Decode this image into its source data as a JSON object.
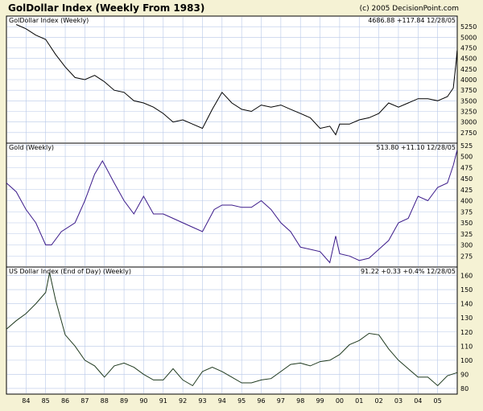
{
  "header": {
    "title": "GolDollar Index (Weekly From 1983)",
    "copyright": "(c) 2005 DecisionPoint.com"
  },
  "colors": {
    "background": "#f5f2d4",
    "plot_area": "#ffffff",
    "grid": "#b8c8e8",
    "goldollar_line": "#000000",
    "gold_line": "#3b1a8a",
    "usd_line": "#1f3a1f"
  },
  "chart_data": [
    {
      "type": "line",
      "panel_label": "GolDollar Index (Weekly)",
      "latest_readout": "4686.88  +117.84  12/28/05",
      "ylim": [
        2500,
        5500
      ],
      "y_ticks": [
        2750,
        3000,
        3250,
        3500,
        3750,
        4000,
        4250,
        4500,
        4750,
        5000,
        5250
      ],
      "series": [
        {
          "x": [
            1983.5,
            1984.0,
            1984.5,
            1985.0,
            1985.5,
            1986.0,
            1986.5,
            1987.0,
            1987.5,
            1988.0,
            1988.5,
            1989.0,
            1989.5,
            1990.0,
            1990.5,
            1991.0,
            1991.5,
            1992.0,
            1992.5,
            1993.0,
            1993.5,
            1994.0,
            1994.5,
            1995.0,
            1995.5,
            1996.0,
            1996.5,
            1997.0,
            1997.5,
            1998.0,
            1998.5,
            1999.0,
            1999.5,
            1999.8,
            2000.0,
            2000.5,
            2001.0,
            2001.5,
            2002.0,
            2002.5,
            2003.0,
            2003.5,
            2004.0,
            2004.5,
            2005.0,
            2005.5,
            2005.8,
            2005.95,
            2005.99
          ],
          "values": [
            5300,
            5200,
            5050,
            4950,
            4600,
            4300,
            4050,
            4000,
            4100,
            3950,
            3750,
            3700,
            3500,
            3450,
            3350,
            3200,
            3000,
            3050,
            2950,
            2850,
            3300,
            3700,
            3450,
            3300,
            3250,
            3400,
            3350,
            3400,
            3300,
            3200,
            3100,
            2850,
            2900,
            2700,
            2950,
            2950,
            3050,
            3100,
            3200,
            3450,
            3350,
            3450,
            3550,
            3550,
            3500,
            3600,
            3800,
            4450,
            4686.88
          ]
        }
      ]
    },
    {
      "type": "line",
      "panel_label": "Gold (Weekly)",
      "latest_readout": "513.80  +11.10  12/28/05",
      "ylim": [
        250,
        530
      ],
      "y_ticks": [
        275,
        300,
        325,
        350,
        375,
        400,
        425,
        450,
        475,
        500,
        525
      ],
      "series": [
        {
          "x": [
            1983.0,
            1983.5,
            1984.0,
            1984.5,
            1985.0,
            1985.3,
            1985.8,
            1986.5,
            1987.0,
            1987.5,
            1987.9,
            1988.5,
            1989.0,
            1989.5,
            1990.0,
            1990.5,
            1991.0,
            1991.5,
            1992.0,
            1992.5,
            1993.0,
            1993.6,
            1994.0,
            1994.5,
            1995.0,
            1995.5,
            1996.0,
            1996.5,
            1997.0,
            1997.5,
            1998.0,
            1998.5,
            1999.0,
            1999.5,
            1999.8,
            2000.0,
            2000.5,
            2001.0,
            2001.5,
            2002.0,
            2002.5,
            2003.0,
            2003.5,
            2004.0,
            2004.5,
            2005.0,
            2005.5,
            2005.8,
            2005.99
          ],
          "values": [
            440,
            420,
            380,
            350,
            300,
            300,
            330,
            350,
            400,
            460,
            490,
            440,
            400,
            370,
            410,
            370,
            370,
            360,
            350,
            340,
            330,
            380,
            390,
            390,
            385,
            385,
            400,
            380,
            350,
            330,
            295,
            290,
            285,
            260,
            320,
            280,
            275,
            265,
            270,
            290,
            310,
            350,
            360,
            410,
            400,
            430,
            440,
            480,
            513.8
          ]
        }
      ]
    },
    {
      "type": "line",
      "panel_label": "US Dollar Index (End of Day) (Weekly)",
      "latest_readout": "91.22  +0.33  +0.4%  12/28/05",
      "ylim": [
        76,
        166
      ],
      "y_ticks": [
        80,
        90,
        100,
        110,
        120,
        130,
        140,
        150,
        160
      ],
      "x_tick_labels": [
        "84",
        "85",
        "86",
        "87",
        "88",
        "89",
        "90",
        "91",
        "92",
        "93",
        "94",
        "95",
        "96",
        "97",
        "98",
        "99",
        "00",
        "01",
        "02",
        "03",
        "04",
        "05"
      ],
      "xlim": [
        1983.0,
        2006.0
      ],
      "series": [
        {
          "x": [
            1983.0,
            1983.5,
            1984.0,
            1984.5,
            1985.0,
            1985.2,
            1985.5,
            1986.0,
            1986.5,
            1987.0,
            1987.5,
            1988.0,
            1988.5,
            1989.0,
            1989.5,
            1990.0,
            1990.5,
            1991.0,
            1991.5,
            1992.0,
            1992.5,
            1993.0,
            1993.5,
            1994.0,
            1994.5,
            1995.0,
            1995.5,
            1996.0,
            1996.5,
            1997.0,
            1997.5,
            1998.0,
            1998.5,
            1999.0,
            1999.5,
            2000.0,
            2000.5,
            2001.0,
            2001.5,
            2002.0,
            2002.5,
            2003.0,
            2003.5,
            2004.0,
            2004.5,
            2005.0,
            2005.5,
            2005.99
          ],
          "values": [
            122,
            128,
            133,
            140,
            148,
            162,
            143,
            118,
            110,
            100,
            96,
            88,
            96,
            98,
            95,
            90,
            86,
            86,
            94,
            86,
            82,
            92,
            95,
            92,
            88,
            84,
            84,
            86,
            87,
            92,
            97,
            98,
            96,
            99,
            100,
            104,
            111,
            114,
            119,
            118,
            108,
            100,
            94,
            88,
            88,
            82,
            89,
            91.22
          ]
        }
      ]
    }
  ]
}
